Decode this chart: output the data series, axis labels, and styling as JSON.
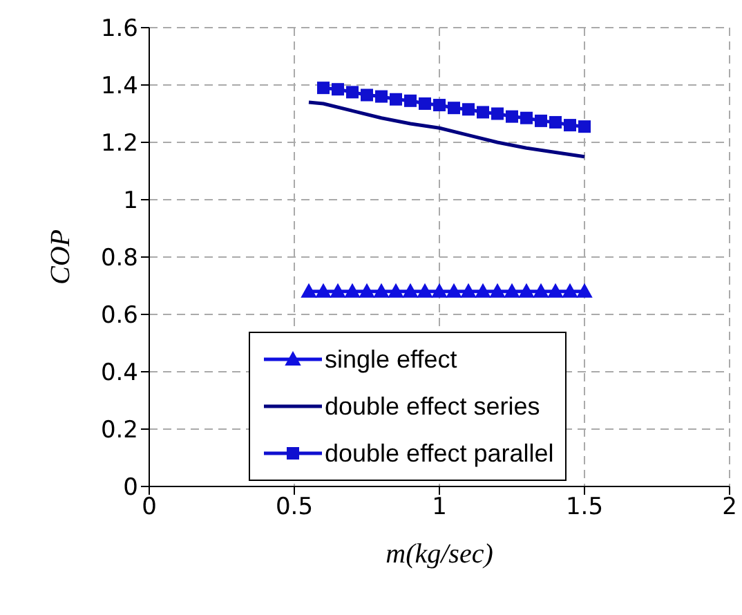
{
  "chart_data": {
    "type": "line",
    "xlabel": "m(kg/sec)",
    "ylabel": "COP",
    "xlim": [
      0,
      2
    ],
    "xticks": [
      0,
      0.5,
      1,
      1.5,
      2
    ],
    "ylim": [
      0,
      1.6
    ],
    "yticks": [
      0,
      0.2,
      0.4,
      0.6,
      0.8,
      1,
      1.2,
      1.4,
      1.6
    ],
    "grid": true,
    "legend": "bottom",
    "series": [
      {
        "name": "single effect",
        "color": "#1010e0",
        "marker": "triangle",
        "x": [
          0.55,
          0.6,
          0.65,
          0.7,
          0.75,
          0.8,
          0.85,
          0.9,
          0.95,
          1,
          1.05,
          1.1,
          1.15,
          1.2,
          1.25,
          1.3,
          1.35,
          1.4,
          1.45,
          1.5
        ],
        "values": [
          0.68,
          0.68,
          0.68,
          0.68,
          0.68,
          0.68,
          0.68,
          0.68,
          0.68,
          0.68,
          0.68,
          0.68,
          0.68,
          0.68,
          0.68,
          0.68,
          0.68,
          0.68,
          0.68,
          0.68
        ]
      },
      {
        "name": "double effect series",
        "color": "#000080",
        "marker": "none",
        "x": [
          0.55,
          0.6,
          0.7,
          0.8,
          0.9,
          1,
          1.1,
          1.2,
          1.3,
          1.4,
          1.5
        ],
        "values": [
          1.34,
          1.335,
          1.31,
          1.285,
          1.265,
          1.25,
          1.225,
          1.2,
          1.18,
          1.165,
          1.15
        ]
      },
      {
        "name": "double effect parallel",
        "color": "#1010d0",
        "marker": "square",
        "x": [
          0.6,
          0.65,
          0.7,
          0.75,
          0.8,
          0.85,
          0.9,
          0.95,
          1,
          1.05,
          1.1,
          1.15,
          1.2,
          1.25,
          1.3,
          1.35,
          1.4,
          1.45,
          1.5
        ],
        "values": [
          1.39,
          1.385,
          1.375,
          1.365,
          1.36,
          1.35,
          1.345,
          1.335,
          1.33,
          1.32,
          1.315,
          1.305,
          1.3,
          1.29,
          1.285,
          1.275,
          1.27,
          1.26,
          1.255
        ]
      }
    ]
  }
}
